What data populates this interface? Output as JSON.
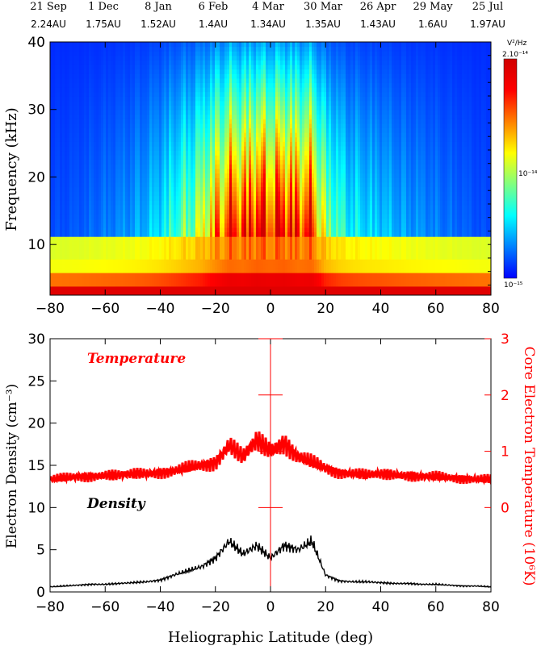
{
  "top_axis": {
    "dates": [
      "21 Sep",
      "1 Dec",
      "8 Jan",
      "6 Feb",
      "4 Mar",
      "30 Mar",
      "26 Apr",
      "29 May",
      "25 Jul"
    ],
    "distances": [
      "2.24AU",
      "1.75AU",
      "1.52AU",
      "1.4AU",
      "1.34AU",
      "1.35AU",
      "1.43AU",
      "1.6AU",
      "1.97AU"
    ]
  },
  "colorbar": {
    "unit_label": "V²/Hz",
    "top_label": "2.10⁻¹⁴",
    "mid_label": "10⁻¹⁴",
    "bottom_label": "10⁻¹⁵",
    "colors": [
      "#0000ff",
      "#0080ff",
      "#00ffff",
      "#80ff80",
      "#ffff00",
      "#ff8000",
      "#ff0000",
      "#d00000"
    ]
  },
  "colors": {
    "temperature": "#ff0000",
    "density": "#000000",
    "axis": "#000000"
  },
  "chart_data": [
    {
      "type": "heatmap",
      "ylabel": "Frequency (kHz)",
      "xlim": [
        -80,
        80
      ],
      "ylim": [
        2.5,
        40
      ],
      "xticks": [
        -80,
        -60,
        -40,
        -20,
        0,
        20,
        40,
        60,
        80
      ],
      "yticks": [
        10,
        20,
        30,
        40
      ],
      "x": [
        -80,
        -75,
        -70,
        -65,
        -60,
        -55,
        -50,
        -45,
        -40,
        -35,
        -30,
        -25,
        -20,
        -15,
        -10,
        -5,
        0,
        5,
        10,
        15,
        20,
        25,
        30,
        35,
        40,
        45,
        50,
        55,
        60,
        65,
        70,
        75,
        80
      ],
      "activity": [
        0.05,
        0.06,
        0.07,
        0.09,
        0.11,
        0.13,
        0.16,
        0.2,
        0.26,
        0.35,
        0.45,
        0.55,
        0.75,
        0.95,
        0.9,
        1.0,
        0.95,
        1.0,
        0.9,
        0.95,
        0.5,
        0.35,
        0.28,
        0.24,
        0.22,
        0.19,
        0.16,
        0.14,
        0.12,
        0.1,
        0.08,
        0.06,
        0.05
      ]
    },
    {
      "type": "line",
      "xlabel": "Heliographic Latitude (deg)",
      "xlim": [
        -80,
        80
      ],
      "xticks": [
        -80,
        -60,
        -40,
        -20,
        0,
        20,
        40,
        60,
        80
      ],
      "y_left": {
        "label": "Electron Density (cm⁻³)",
        "ylim": [
          0,
          30
        ],
        "ticks": [
          0,
          5,
          10,
          15,
          20,
          25,
          30
        ]
      },
      "y_right": {
        "label": "Core Electron Temperature (10⁶K)",
        "ylim": [
          -1.5,
          3
        ],
        "ticks": [
          0,
          1,
          2,
          3
        ]
      },
      "series": [
        {
          "name": "Temperature",
          "axis": "right",
          "x": [
            -80,
            -75,
            -70,
            -65,
            -60,
            -55,
            -50,
            -45,
            -40,
            -35,
            -30,
            -25,
            -20,
            -15,
            -10,
            -5,
            0,
            5,
            10,
            15,
            20,
            25,
            30,
            35,
            40,
            45,
            50,
            55,
            60,
            65,
            70,
            75,
            80
          ],
          "values": [
            0.5,
            0.52,
            0.55,
            0.55,
            0.57,
            0.58,
            0.6,
            0.6,
            0.62,
            0.65,
            0.7,
            0.75,
            0.8,
            1.1,
            0.9,
            1.2,
            1.0,
            1.15,
            0.9,
            0.8,
            0.7,
            0.62,
            0.6,
            0.58,
            0.6,
            0.58,
            0.56,
            0.55,
            0.55,
            0.53,
            0.52,
            0.5,
            0.5
          ]
        },
        {
          "name": "Density",
          "axis": "left",
          "x": [
            -80,
            -75,
            -70,
            -65,
            -60,
            -55,
            -50,
            -45,
            -40,
            -35,
            -30,
            -25,
            -20,
            -15,
            -10,
            -5,
            0,
            5,
            10,
            15,
            20,
            25,
            30,
            35,
            40,
            45,
            50,
            55,
            60,
            65,
            70,
            75,
            80
          ],
          "values": [
            0.6,
            0.7,
            0.8,
            0.9,
            0.9,
            1.0,
            1.1,
            1.2,
            1.4,
            2.0,
            2.5,
            3.0,
            4.0,
            6.0,
            4.5,
            5.5,
            4.0,
            5.5,
            5.0,
            6.0,
            2.0,
            1.3,
            1.2,
            1.2,
            1.1,
            1.0,
            1.0,
            0.9,
            0.9,
            0.8,
            0.7,
            0.7,
            0.6
          ]
        }
      ]
    }
  ]
}
